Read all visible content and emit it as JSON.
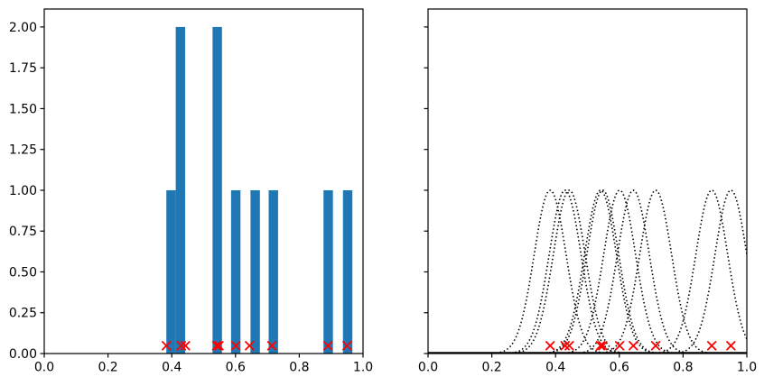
{
  "figure": {
    "background": "#ffffff",
    "title": ""
  },
  "chart_data": [
    {
      "type": "bar",
      "subplot": "left-histogram",
      "title": "",
      "xlabel": "",
      "ylabel": "",
      "xlim": [
        0.0,
        1.0
      ],
      "ylim": [
        0.0,
        2.11
      ],
      "grid": false,
      "legend": "none",
      "xticks": {
        "values": [
          0.0,
          0.2,
          0.4,
          0.6,
          0.8,
          1.0
        ],
        "labels": [
          "0.0",
          "0.2",
          "0.4",
          "0.6",
          "0.8",
          "1.0"
        ]
      },
      "yticks": {
        "values": [
          0.0,
          0.25,
          0.5,
          0.75,
          1.0,
          1.25,
          1.5,
          1.75,
          2.0
        ],
        "labels": [
          "0.00",
          "0.25",
          "0.50",
          "0.75",
          "1.00",
          "1.25",
          "1.50",
          "1.75",
          "2.00"
        ]
      },
      "bars": {
        "color": "#1f77b4",
        "bin_width": 0.0295,
        "left_edges": [
          0.383,
          0.4125,
          0.528,
          0.586,
          0.647,
          0.704,
          0.876,
          0.937
        ],
        "heights": [
          1,
          2,
          2,
          1,
          1,
          1,
          1,
          1
        ]
      },
      "rug": {
        "marker": "x",
        "color": "#ff0000",
        "y": 0.048,
        "x": [
          0.383,
          0.43,
          0.443,
          0.541,
          0.548,
          0.601,
          0.644,
          0.714,
          0.89,
          0.95
        ]
      }
    },
    {
      "type": "line",
      "subplot": "right-kernels",
      "title": "",
      "xlabel": "",
      "ylabel": "",
      "xlim": [
        0.0,
        1.0
      ],
      "ylim": [
        0.0,
        2.11
      ],
      "grid": false,
      "legend": "none",
      "xticks": {
        "values": [
          0.0,
          0.2,
          0.4,
          0.6,
          0.8,
          1.0
        ],
        "labels": [
          "0.0",
          "0.2",
          "0.4",
          "0.6",
          "0.8",
          "1.0"
        ]
      },
      "yticks": {
        "values": [
          0.0,
          0.25,
          0.5,
          0.75,
          1.0,
          1.25,
          1.5,
          1.75,
          2.0
        ],
        "labels": []
      },
      "kernels": {
        "shape": "gaussian",
        "line_style": "dotted",
        "color": "#000000",
        "sigma": 0.05,
        "peak": 1.0,
        "centers": [
          0.383,
          0.43,
          0.443,
          0.541,
          0.548,
          0.601,
          0.644,
          0.714,
          0.89,
          0.95
        ]
      },
      "baseline": {
        "y": 0.0,
        "color": "#000000"
      },
      "rug": {
        "marker": "x",
        "color": "#ff0000",
        "y": 0.048,
        "x": [
          0.383,
          0.43,
          0.443,
          0.541,
          0.548,
          0.601,
          0.644,
          0.714,
          0.89,
          0.95
        ]
      }
    }
  ]
}
